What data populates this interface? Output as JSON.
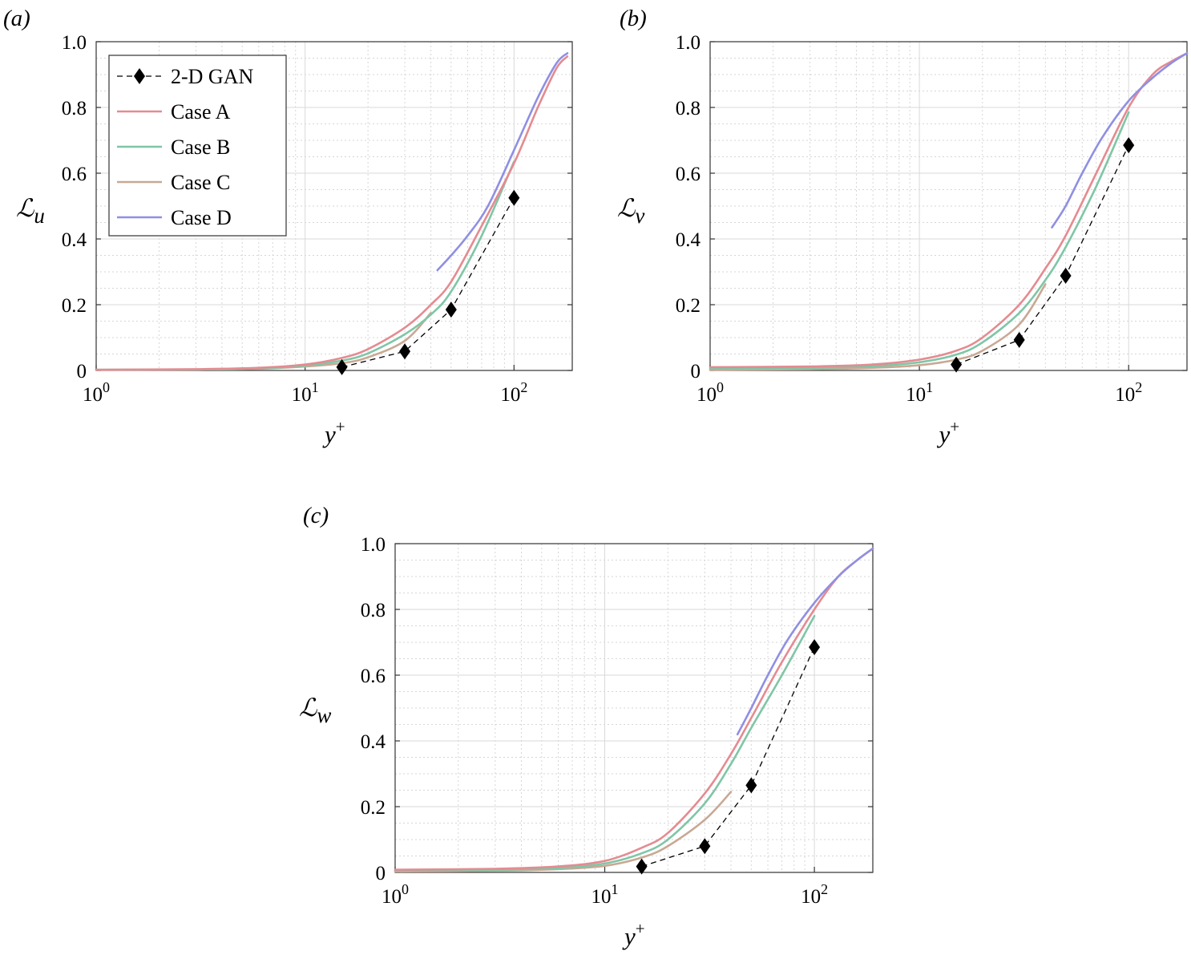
{
  "colors": {
    "2-D GAN": "#000000",
    "Case A": "#e48b91",
    "Case B": "#7fc6a6",
    "Case C": "#c8a994",
    "Case D": "#8f8fe3"
  },
  "legend": {
    "labels": [
      "2-D GAN",
      "Case A",
      "Case B",
      "Case C",
      "Case D"
    ],
    "placement": "top-left of panel (a)"
  },
  "chart_data": [
    {
      "type": "line",
      "panel": "(a)",
      "ylabel_main": "ℒ",
      "ylabel_sub": "u",
      "xlabel_main": "y",
      "xlabel_sup": "+",
      "xscale": "log",
      "xlim": [
        1,
        190
      ],
      "ylim": [
        0,
        1
      ],
      "xticks": [
        {
          "value": 1,
          "base": "10",
          "exp": "0"
        },
        {
          "value": 10,
          "base": "10",
          "exp": "1"
        },
        {
          "value": 100,
          "base": "10",
          "exp": "2"
        }
      ],
      "yticks": [
        "0",
        "0.2",
        "0.4",
        "0.6",
        "0.8",
        "1.0"
      ],
      "grid": true,
      "series": [
        {
          "name": "2-D GAN",
          "style": "dashed-marker",
          "x": [
            15,
            30,
            50,
            100
          ],
          "y": [
            0.01,
            0.058,
            0.185,
            0.525
          ]
        },
        {
          "name": "Case A",
          "x": [
            1,
            3,
            6,
            10,
            15,
            20,
            30,
            40,
            50,
            70,
            100,
            130,
            160,
            180
          ],
          "y": [
            0.002,
            0.004,
            0.008,
            0.018,
            0.038,
            0.065,
            0.13,
            0.2,
            0.27,
            0.44,
            0.63,
            0.8,
            0.92,
            0.955
          ]
        },
        {
          "name": "Case B",
          "x": [
            1,
            3,
            6,
            10,
            15,
            20,
            30,
            40,
            50,
            70,
            100
          ],
          "y": [
            0.002,
            0.003,
            0.006,
            0.015,
            0.03,
            0.052,
            0.11,
            0.17,
            0.24,
            0.41,
            0.635
          ]
        },
        {
          "name": "Case C",
          "x": [
            1,
            3,
            6,
            10,
            15,
            20,
            30,
            40
          ],
          "y": [
            0.002,
            0.003,
            0.005,
            0.012,
            0.022,
            0.04,
            0.09,
            0.175
          ]
        },
        {
          "name": "Case D",
          "x": [
            43,
            50,
            60,
            75,
            100,
            130,
            160,
            180
          ],
          "y": [
            0.305,
            0.35,
            0.41,
            0.5,
            0.67,
            0.83,
            0.935,
            0.965
          ]
        }
      ]
    },
    {
      "type": "line",
      "panel": "(b)",
      "ylabel_main": "ℒ",
      "ylabel_sub": "v",
      "xlabel_main": "y",
      "xlabel_sup": "+",
      "xscale": "log",
      "xlim": [
        1,
        190
      ],
      "ylim": [
        0,
        1
      ],
      "xticks": [
        {
          "value": 1,
          "base": "10",
          "exp": "0"
        },
        {
          "value": 10,
          "base": "10",
          "exp": "1"
        },
        {
          "value": 100,
          "base": "10",
          "exp": "2"
        }
      ],
      "yticks": [
        "0",
        "0.2",
        "0.4",
        "0.6",
        "0.8",
        "1.0"
      ],
      "grid": true,
      "series": [
        {
          "name": "2-D GAN",
          "style": "dashed-marker",
          "x": [
            15,
            30,
            50,
            100
          ],
          "y": [
            0.018,
            0.093,
            0.288,
            0.685
          ]
        },
        {
          "name": "Case A",
          "x": [
            1,
            3,
            6,
            10,
            15,
            20,
            30,
            40,
            50,
            70,
            100,
            130,
            160,
            190
          ],
          "y": [
            0.01,
            0.012,
            0.018,
            0.033,
            0.06,
            0.1,
            0.2,
            0.31,
            0.41,
            0.6,
            0.8,
            0.9,
            0.94,
            0.965
          ]
        },
        {
          "name": "Case B",
          "x": [
            1,
            3,
            6,
            10,
            15,
            20,
            30,
            40,
            50,
            70,
            100
          ],
          "y": [
            0.006,
            0.008,
            0.013,
            0.025,
            0.048,
            0.085,
            0.175,
            0.275,
            0.375,
            0.56,
            0.785
          ]
        },
        {
          "name": "Case C",
          "x": [
            1,
            3,
            6,
            10,
            15,
            20,
            30,
            40
          ],
          "y": [
            0.002,
            0.004,
            0.008,
            0.016,
            0.033,
            0.06,
            0.14,
            0.262
          ]
        },
        {
          "name": "Case D",
          "x": [
            43,
            50,
            60,
            75,
            100,
            130,
            160,
            190
          ],
          "y": [
            0.435,
            0.5,
            0.6,
            0.71,
            0.82,
            0.89,
            0.935,
            0.965
          ]
        }
      ]
    },
    {
      "type": "line",
      "panel": "(c)",
      "ylabel_main": "ℒ",
      "ylabel_sub": "w",
      "xlabel_main": "y",
      "xlabel_sup": "+",
      "xscale": "log",
      "xlim": [
        1,
        190
      ],
      "ylim": [
        0,
        1
      ],
      "xticks": [
        {
          "value": 1,
          "base": "10",
          "exp": "0"
        },
        {
          "value": 10,
          "base": "10",
          "exp": "1"
        },
        {
          "value": 100,
          "base": "10",
          "exp": "2"
        }
      ],
      "yticks": [
        "0",
        "0.2",
        "0.4",
        "0.6",
        "0.8",
        "1.0"
      ],
      "grid": true,
      "series": [
        {
          "name": "2-D GAN",
          "style": "dashed-marker",
          "x": [
            15,
            30,
            50,
            100
          ],
          "y": [
            0.018,
            0.08,
            0.265,
            0.685
          ]
        },
        {
          "name": "Case A",
          "x": [
            1,
            3,
            6,
            10,
            15,
            20,
            30,
            40,
            50,
            70,
            100,
            130,
            160,
            190
          ],
          "y": [
            0.008,
            0.011,
            0.018,
            0.035,
            0.075,
            0.12,
            0.24,
            0.36,
            0.47,
            0.64,
            0.8,
            0.9,
            0.95,
            0.985
          ]
        },
        {
          "name": "Case B",
          "x": [
            1,
            3,
            6,
            10,
            15,
            20,
            30,
            40,
            50,
            70,
            100
          ],
          "y": [
            0.005,
            0.008,
            0.013,
            0.027,
            0.058,
            0.1,
            0.21,
            0.33,
            0.44,
            0.6,
            0.78
          ]
        },
        {
          "name": "Case C",
          "x": [
            1,
            3,
            6,
            10,
            15,
            20,
            30,
            40
          ],
          "y": [
            0.003,
            0.005,
            0.01,
            0.02,
            0.045,
            0.08,
            0.16,
            0.245
          ]
        },
        {
          "name": "Case D",
          "x": [
            43,
            50,
            60,
            75,
            100,
            130,
            160,
            190
          ],
          "y": [
            0.42,
            0.5,
            0.6,
            0.71,
            0.82,
            0.9,
            0.95,
            0.985
          ]
        }
      ]
    }
  ]
}
